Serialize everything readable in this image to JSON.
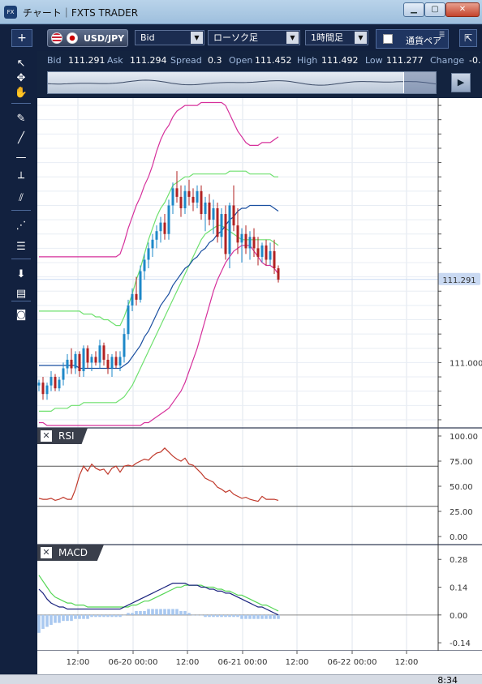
{
  "window": {
    "title": "チャート｜FXTS TRADER",
    "app_icon": "FX",
    "min": "▁",
    "max": "▢",
    "close": "✕"
  },
  "toolbar": {
    "add": "+",
    "pair": "USD/JPY",
    "price_type": "Bid",
    "chart_type": "ローソク足",
    "interval": "1時間足",
    "option_label": "通貨ペア",
    "option_menu": "☰",
    "detach": "⇱"
  },
  "quote": {
    "bid_label": "Bid",
    "bid": "111.291",
    "ask_label": "Ask",
    "ask": "111.294",
    "spread_label": "Spread",
    "spread": "0.3",
    "open_label": "Open",
    "open": "111.452",
    "high_label": "High",
    "high": "111.492",
    "low_label": "Low",
    "low": "111.277",
    "change_label": "Change",
    "change": "-0."
  },
  "navigator": {
    "arrow": "▶"
  },
  "tools": [
    {
      "name": "cursor-tool",
      "glyph": "↖"
    },
    {
      "name": "crosshair-tool",
      "glyph": "✥"
    },
    {
      "name": "hand-tool",
      "glyph": "✋"
    },
    {
      "name": "pen-tool",
      "glyph": "✎"
    },
    {
      "name": "trendline-tool",
      "glyph": "╱"
    },
    {
      "name": "horizontal-line-tool",
      "glyph": "—"
    },
    {
      "name": "vertical-line-tool",
      "glyph": "┴"
    },
    {
      "name": "channel-tool",
      "glyph": "⫽"
    },
    {
      "name": "fan-tool",
      "glyph": "⋰"
    },
    {
      "name": "fibonacci-tool",
      "glyph": "☰"
    },
    {
      "name": "download-tool",
      "glyph": "⬇"
    },
    {
      "name": "list-tool",
      "glyph": "▤"
    },
    {
      "name": "camera-tool",
      "glyph": "◙"
    }
  ],
  "panels": {
    "rsi": "RSI",
    "macd": "MACD",
    "close_glyph": "✕"
  },
  "taskbar": {
    "time": "8:34"
  },
  "colors": {
    "up": "#1e88c8",
    "down": "#b22222",
    "bb_outer": "#d6309b",
    "bb_inner": "#6ee06e",
    "ma": "#1a4fa0",
    "rsi": "#c0392b",
    "macd": "#1a237e",
    "signal": "#55d655",
    "hist": "#a9c8f0",
    "current": "#c9d9f2"
  },
  "chart_data": [
    {
      "type": "candlestick",
      "price_axis": [
        "111.000"
      ],
      "current_price": "111.291",
      "ylim": [
        110.78,
        111.92
      ],
      "x_ticks": [
        "12:00",
        "06-20 00:00",
        "12:00",
        "06-21 00:00",
        "12:00",
        "06-22 00:00",
        "12:00"
      ],
      "candles": [
        [
          110.92,
          110.94,
          110.9,
          110.93
        ],
        [
          110.93,
          110.95,
          110.87,
          110.89
        ],
        [
          110.89,
          110.93,
          110.87,
          110.92
        ],
        [
          110.92,
          110.97,
          110.9,
          110.95
        ],
        [
          110.95,
          110.96,
          110.9,
          110.91
        ],
        [
          110.91,
          110.95,
          110.9,
          110.94
        ],
        [
          110.94,
          111.0,
          110.92,
          110.98
        ],
        [
          110.98,
          111.03,
          110.96,
          111.01
        ],
        [
          111.01,
          111.05,
          110.96,
          110.98
        ],
        [
          110.98,
          111.04,
          110.96,
          111.03
        ],
        [
          111.03,
          111.04,
          110.95,
          110.97
        ],
        [
          110.97,
          111.06,
          110.95,
          111.05
        ],
        [
          111.05,
          111.06,
          110.98,
          111.0
        ],
        [
          111.0,
          111.03,
          110.97,
          111.02
        ],
        [
          111.02,
          111.04,
          110.99,
          111.0
        ],
        [
          111.0,
          111.08,
          110.98,
          111.06
        ],
        [
          111.06,
          111.07,
          110.99,
          111.01
        ],
        [
          111.01,
          111.03,
          110.96,
          110.98
        ],
        [
          110.98,
          111.03,
          110.95,
          111.02
        ],
        [
          111.02,
          111.04,
          110.98,
          110.99
        ],
        [
          110.99,
          111.04,
          110.97,
          111.02
        ],
        [
          111.02,
          111.12,
          111.0,
          111.1
        ],
        [
          111.1,
          111.22,
          111.08,
          111.2
        ],
        [
          111.2,
          111.26,
          111.18,
          111.24
        ],
        [
          111.24,
          111.3,
          111.2,
          111.22
        ],
        [
          111.22,
          111.34,
          111.21,
          111.32
        ],
        [
          111.32,
          111.38,
          111.29,
          111.36
        ],
        [
          111.36,
          111.42,
          111.33,
          111.4
        ],
        [
          111.4,
          111.45,
          111.37,
          111.43
        ],
        [
          111.43,
          111.48,
          111.4,
          111.46
        ],
        [
          111.46,
          111.51,
          111.42,
          111.49
        ],
        [
          111.49,
          111.52,
          111.43,
          111.45
        ],
        [
          111.45,
          111.57,
          111.43,
          111.55
        ],
        [
          111.55,
          111.63,
          111.52,
          111.61
        ],
        [
          111.61,
          111.67,
          111.56,
          111.58
        ],
        [
          111.58,
          111.62,
          111.51,
          111.54
        ],
        [
          111.54,
          111.62,
          111.52,
          111.6
        ],
        [
          111.6,
          111.64,
          111.55,
          111.58
        ],
        [
          111.58,
          111.61,
          111.53,
          111.56
        ],
        [
          111.56,
          111.62,
          111.54,
          111.6
        ],
        [
          111.6,
          111.62,
          111.5,
          111.52
        ],
        [
          111.52,
          111.58,
          111.46,
          111.56
        ],
        [
          111.56,
          111.59,
          111.48,
          111.5
        ],
        [
          111.5,
          111.57,
          111.45,
          111.54
        ],
        [
          111.54,
          111.56,
          111.42,
          111.44
        ],
        [
          111.44,
          111.54,
          111.4,
          111.52
        ],
        [
          111.52,
          111.55,
          111.36,
          111.38
        ],
        [
          111.38,
          111.56,
          111.33,
          111.55
        ],
        [
          111.55,
          111.62,
          111.46,
          111.48
        ],
        [
          111.48,
          111.54,
          111.38,
          111.42
        ],
        [
          111.42,
          111.47,
          111.35,
          111.45
        ],
        [
          111.45,
          111.48,
          111.38,
          111.4
        ],
        [
          111.4,
          111.46,
          111.36,
          111.44
        ],
        [
          111.44,
          111.47,
          111.37,
          111.4
        ],
        [
          111.4,
          111.44,
          111.34,
          111.37
        ],
        [
          111.37,
          111.42,
          111.35,
          111.41
        ],
        [
          111.41,
          111.43,
          111.34,
          111.36
        ],
        [
          111.36,
          111.42,
          111.34,
          111.39
        ],
        [
          111.39,
          111.43,
          111.31,
          111.33
        ],
        [
          111.33,
          111.34,
          111.28,
          111.29
        ]
      ],
      "ma": [
        110.99,
        110.99,
        110.99,
        110.99,
        110.99,
        110.99,
        110.99,
        110.99,
        110.99,
        110.99,
        110.98,
        110.98,
        110.98,
        110.98,
        110.98,
        110.98,
        110.98,
        110.98,
        110.98,
        110.98,
        110.98,
        110.99,
        111.0,
        111.02,
        111.04,
        111.06,
        111.09,
        111.11,
        111.14,
        111.17,
        111.2,
        111.22,
        111.24,
        111.27,
        111.29,
        111.31,
        111.33,
        111.34,
        111.36,
        111.37,
        111.39,
        111.4,
        111.42,
        111.43,
        111.45,
        111.46,
        111.48,
        111.5,
        111.51,
        111.53,
        111.54,
        111.54,
        111.55,
        111.55,
        111.55,
        111.55,
        111.55,
        111.55,
        111.54,
        111.53
      ],
      "bb_upper_outer": [
        111.37,
        111.37,
        111.37,
        111.37,
        111.37,
        111.37,
        111.37,
        111.37,
        111.37,
        111.37,
        111.37,
        111.37,
        111.37,
        111.37,
        111.37,
        111.37,
        111.37,
        111.37,
        111.37,
        111.37,
        111.38,
        111.42,
        111.47,
        111.51,
        111.55,
        111.58,
        111.62,
        111.65,
        111.69,
        111.74,
        111.78,
        111.81,
        111.83,
        111.86,
        111.88,
        111.89,
        111.9,
        111.9,
        111.9,
        111.9,
        111.91,
        111.91,
        111.91,
        111.91,
        111.91,
        111.91,
        111.9,
        111.87,
        111.84,
        111.81,
        111.79,
        111.77,
        111.76,
        111.76,
        111.76,
        111.77,
        111.77,
        111.77,
        111.78,
        111.79
      ],
      "bb_upper_inner": [
        111.18,
        111.18,
        111.18,
        111.18,
        111.18,
        111.18,
        111.18,
        111.18,
        111.18,
        111.18,
        111.18,
        111.17,
        111.17,
        111.17,
        111.16,
        111.16,
        111.15,
        111.15,
        111.14,
        111.13,
        111.13,
        111.16,
        111.2,
        111.24,
        111.29,
        111.33,
        111.38,
        111.43,
        111.47,
        111.51,
        111.54,
        111.56,
        111.59,
        111.62,
        111.63,
        111.64,
        111.65,
        111.65,
        111.66,
        111.66,
        111.66,
        111.66,
        111.66,
        111.66,
        111.66,
        111.66,
        111.66,
        111.67,
        111.67,
        111.67,
        111.67,
        111.67,
        111.66,
        111.66,
        111.66,
        111.66,
        111.66,
        111.66,
        111.65,
        111.65
      ],
      "bb_lower_inner": [
        110.83,
        110.83,
        110.83,
        110.83,
        110.84,
        110.84,
        110.84,
        110.84,
        110.85,
        110.85,
        110.85,
        110.86,
        110.86,
        110.86,
        110.86,
        110.86,
        110.86,
        110.86,
        110.86,
        110.86,
        110.87,
        110.88,
        110.9,
        110.92,
        110.95,
        110.98,
        111.01,
        111.04,
        111.07,
        111.1,
        111.13,
        111.16,
        111.19,
        111.22,
        111.25,
        111.28,
        111.31,
        111.34,
        111.37,
        111.4,
        111.43,
        111.45,
        111.46,
        111.47,
        111.48,
        111.48,
        111.47,
        111.46,
        111.45,
        111.44,
        111.43,
        111.43,
        111.43,
        111.43,
        111.43,
        111.43,
        111.43,
        111.43,
        111.42,
        111.41
      ],
      "bb_lower_outer": [
        110.79,
        110.79,
        110.78,
        110.78,
        110.78,
        110.78,
        110.78,
        110.78,
        110.78,
        110.78,
        110.78,
        110.78,
        110.78,
        110.78,
        110.78,
        110.78,
        110.78,
        110.78,
        110.78,
        110.78,
        110.78,
        110.78,
        110.78,
        110.78,
        110.78,
        110.78,
        110.79,
        110.79,
        110.8,
        110.81,
        110.82,
        110.83,
        110.84,
        110.86,
        110.88,
        110.9,
        110.93,
        110.97,
        111.01,
        111.05,
        111.1,
        111.15,
        111.2,
        111.25,
        111.29,
        111.32,
        111.35,
        111.37,
        111.39,
        111.4,
        111.41,
        111.41,
        111.41,
        111.39,
        111.37,
        111.35,
        111.34,
        111.34,
        111.33,
        111.31
      ]
    },
    {
      "type": "line",
      "title": "RSI",
      "y_ticks": [
        "100.00",
        "75.00",
        "50.00",
        "25.00",
        "0.00"
      ],
      "ylim": [
        0,
        100
      ],
      "levels": [
        70,
        30
      ],
      "values": [
        38,
        37,
        37,
        38,
        36,
        37,
        39,
        37,
        37,
        47,
        61,
        70,
        65,
        72,
        68,
        66,
        67,
        62,
        68,
        70,
        64,
        70,
        71,
        70,
        73,
        75,
        77,
        76,
        80,
        83,
        84,
        88,
        84,
        80,
        77,
        75,
        78,
        72,
        71,
        67,
        63,
        58,
        56,
        54,
        49,
        47,
        44,
        46,
        42,
        40,
        38,
        39,
        37,
        36,
        35,
        40,
        37,
        37,
        37,
        36
      ]
    },
    {
      "type": "line",
      "title": "MACD",
      "y_ticks": [
        "0.28",
        "0.14",
        "0.00",
        "-0.14"
      ],
      "ylim": [
        -0.16,
        0.33
      ],
      "macd": [
        0.13,
        0.11,
        0.08,
        0.06,
        0.05,
        0.04,
        0.04,
        0.03,
        0.03,
        0.03,
        0.03,
        0.03,
        0.03,
        0.03,
        0.03,
        0.03,
        0.03,
        0.03,
        0.03,
        0.03,
        0.03,
        0.04,
        0.05,
        0.06,
        0.07,
        0.08,
        0.09,
        0.1,
        0.11,
        0.12,
        0.13,
        0.14,
        0.15,
        0.16,
        0.16,
        0.16,
        0.16,
        0.15,
        0.15,
        0.15,
        0.14,
        0.14,
        0.13,
        0.13,
        0.12,
        0.12,
        0.11,
        0.11,
        0.1,
        0.09,
        0.08,
        0.07,
        0.06,
        0.05,
        0.04,
        0.04,
        0.03,
        0.02,
        0.01,
        0.0
      ],
      "signal": [
        0.2,
        0.17,
        0.14,
        0.11,
        0.09,
        0.08,
        0.07,
        0.06,
        0.06,
        0.05,
        0.05,
        0.05,
        0.04,
        0.04,
        0.04,
        0.04,
        0.04,
        0.04,
        0.04,
        0.04,
        0.04,
        0.04,
        0.04,
        0.05,
        0.05,
        0.06,
        0.07,
        0.07,
        0.08,
        0.09,
        0.1,
        0.11,
        0.12,
        0.13,
        0.14,
        0.14,
        0.15,
        0.15,
        0.15,
        0.15,
        0.15,
        0.14,
        0.14,
        0.14,
        0.13,
        0.13,
        0.12,
        0.12,
        0.11,
        0.1,
        0.1,
        0.09,
        0.08,
        0.07,
        0.06,
        0.05,
        0.05,
        0.04,
        0.03,
        0.02
      ],
      "hist": [
        -0.09,
        -0.07,
        -0.06,
        -0.05,
        -0.04,
        -0.04,
        -0.03,
        -0.03,
        -0.03,
        -0.02,
        -0.02,
        -0.02,
        -0.02,
        -0.01,
        -0.01,
        -0.01,
        -0.01,
        -0.01,
        -0.01,
        -0.01,
        -0.01,
        0.0,
        0.01,
        0.01,
        0.02,
        0.02,
        0.02,
        0.03,
        0.03,
        0.03,
        0.03,
        0.03,
        0.03,
        0.03,
        0.03,
        0.02,
        0.02,
        0.01,
        0.0,
        0.0,
        0.0,
        -0.01,
        -0.01,
        -0.01,
        -0.01,
        -0.01,
        -0.01,
        -0.01,
        -0.01,
        -0.01,
        -0.02,
        -0.02,
        -0.02,
        -0.02,
        -0.02,
        -0.02,
        -0.02,
        -0.02,
        -0.02,
        -0.02
      ]
    }
  ]
}
